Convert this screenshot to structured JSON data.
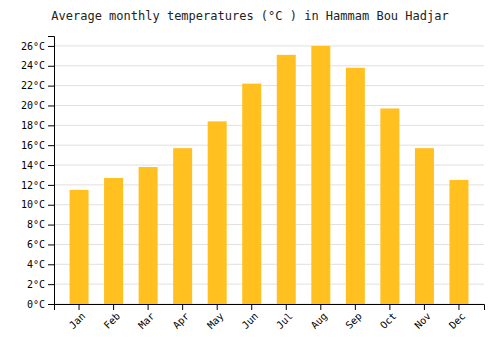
{
  "chart_data": {
    "type": "bar",
    "title": "Average monthly temperatures (°C ) in Hammam Bou Hadjar",
    "categories": [
      "Jan",
      "Feb",
      "Mar",
      "Apr",
      "May",
      "Jun",
      "Jul",
      "Aug",
      "Sep",
      "Oct",
      "Nov",
      "Dec"
    ],
    "values": [
      11.5,
      12.7,
      13.8,
      15.7,
      18.4,
      22.2,
      25.1,
      26.0,
      23.8,
      19.7,
      15.7,
      12.5
    ],
    "color": "#FFC020",
    "ylim": [
      0,
      27
    ],
    "yticks": [
      {
        "value": 0,
        "label": "0°C"
      },
      {
        "value": 2,
        "label": "2°C"
      },
      {
        "value": 4,
        "label": "4°C"
      },
      {
        "value": 6,
        "label": "6°C"
      },
      {
        "value": 8,
        "label": "8°C"
      },
      {
        "value": 10,
        "label": "10°C"
      },
      {
        "value": 12,
        "label": "12°C"
      },
      {
        "value": 14,
        "label": "14°C"
      },
      {
        "value": 16,
        "label": "16°C"
      },
      {
        "value": 18,
        "label": "18°C"
      },
      {
        "value": 20,
        "label": "20°C"
      },
      {
        "value": 22,
        "label": "22°C"
      },
      {
        "value": 24,
        "label": "24°C"
      },
      {
        "value": 26,
        "label": "26°C"
      }
    ],
    "grid": true
  }
}
